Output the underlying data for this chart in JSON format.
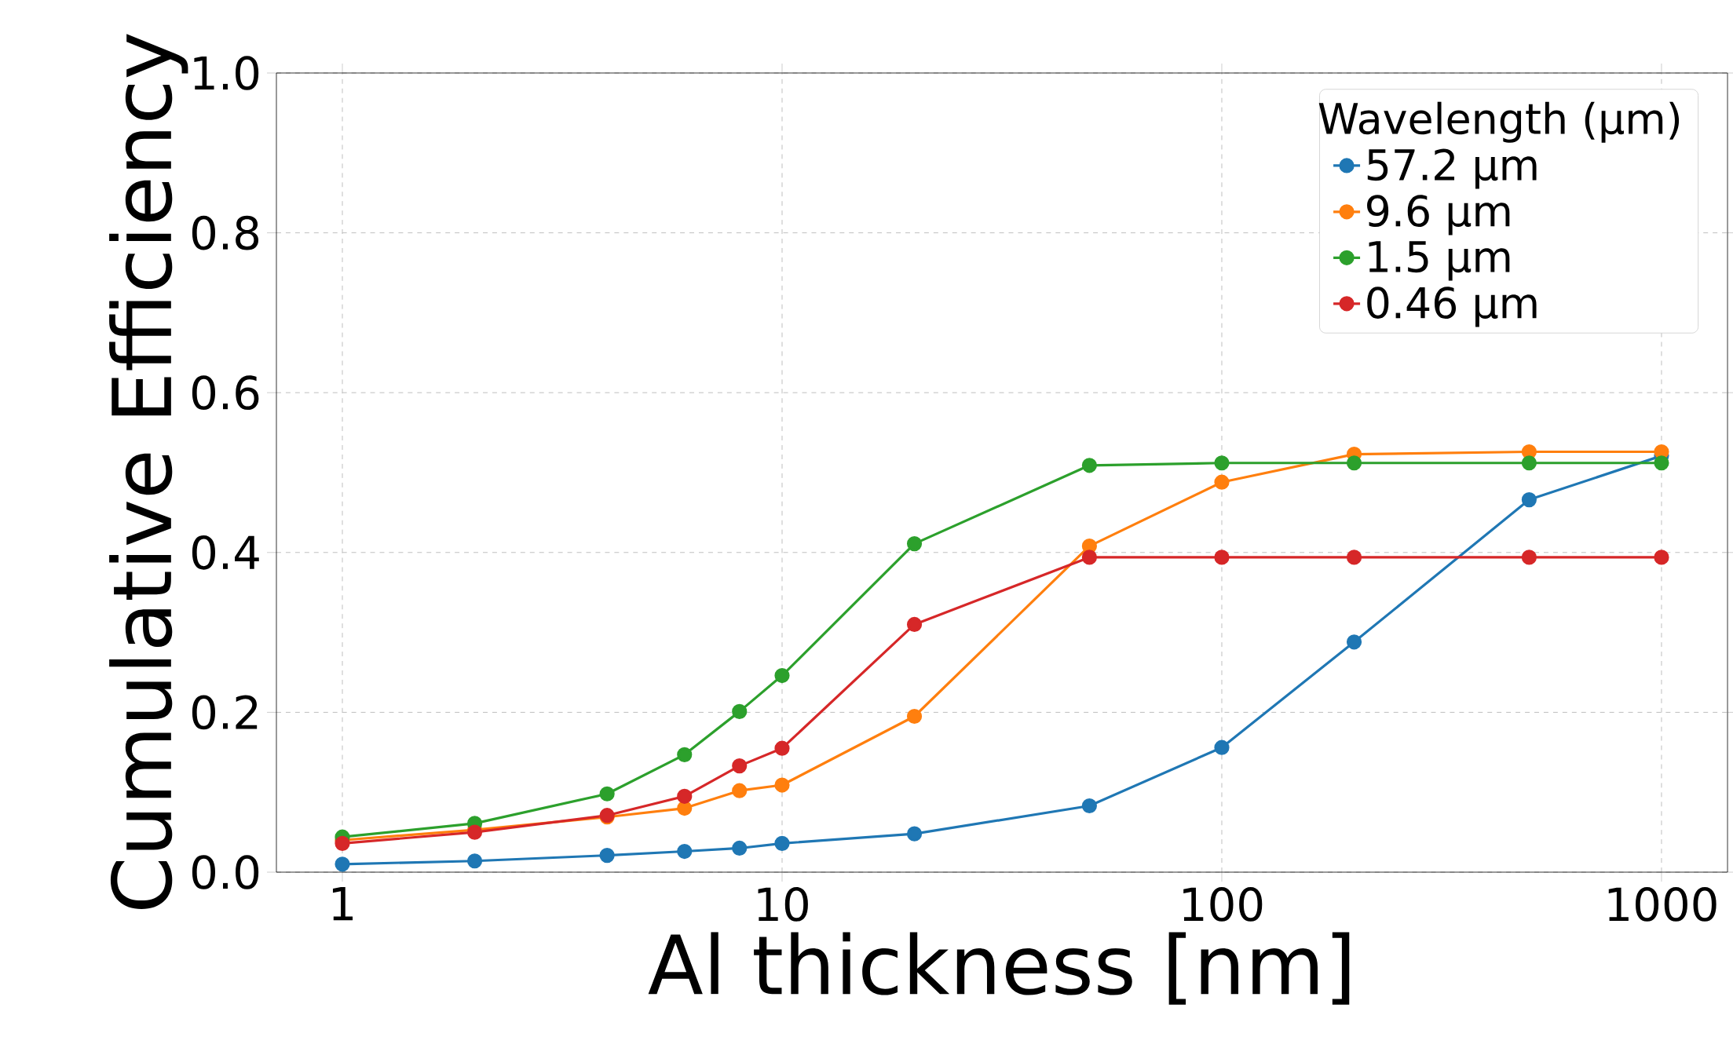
{
  "chart_data": {
    "type": "line",
    "xlabel": "Al thickness [nm]",
    "ylabel": "Cumulative Efficiency",
    "legend_title": "Wavelength (µm)",
    "x": [
      1,
      2,
      4,
      6,
      8,
      10,
      20,
      50,
      100,
      200,
      500,
      1000
    ],
    "series": [
      {
        "name": "57.2 µm",
        "color": "#1f77b4",
        "values": [
          0.01,
          0.014,
          0.021,
          0.026,
          0.03,
          0.036,
          0.048,
          0.083,
          0.156,
          0.288,
          0.466,
          0.521
        ]
      },
      {
        "name": "9.6 µm",
        "color": "#ff7f0e",
        "values": [
          0.04,
          0.053,
          0.069,
          0.08,
          0.102,
          0.109,
          0.195,
          0.408,
          0.488,
          0.523,
          0.526,
          0.526
        ]
      },
      {
        "name": "1.5 µm",
        "color": "#2ca02c",
        "values": [
          0.044,
          0.061,
          0.098,
          0.147,
          0.201,
          0.246,
          0.411,
          0.509,
          0.512,
          0.512,
          0.512,
          0.512
        ]
      },
      {
        "name": "0.46 µm",
        "color": "#d62728",
        "values": [
          0.036,
          0.05,
          0.071,
          0.095,
          0.133,
          0.155,
          0.31,
          0.394,
          0.394,
          0.394,
          0.394,
          0.394
        ]
      }
    ],
    "log": "x",
    "xlim": [
      0.708,
      1413
    ],
    "xticks": [
      1,
      10,
      100,
      1000
    ],
    "ylim": [
      0,
      1
    ],
    "yticks": [
      {
        "value": 0,
        "label": "0.0"
      },
      {
        "value": 0.2,
        "label": "0.2"
      },
      {
        "value": 0.4,
        "label": "0.4"
      },
      {
        "value": 0.6,
        "label": "0.6"
      },
      {
        "value": 0.8,
        "label": "0.8"
      },
      {
        "value": 1,
        "label": "1.0"
      }
    ],
    "grid": true,
    "legend": "top right",
    "marker": "circle",
    "line_style": "solid"
  }
}
